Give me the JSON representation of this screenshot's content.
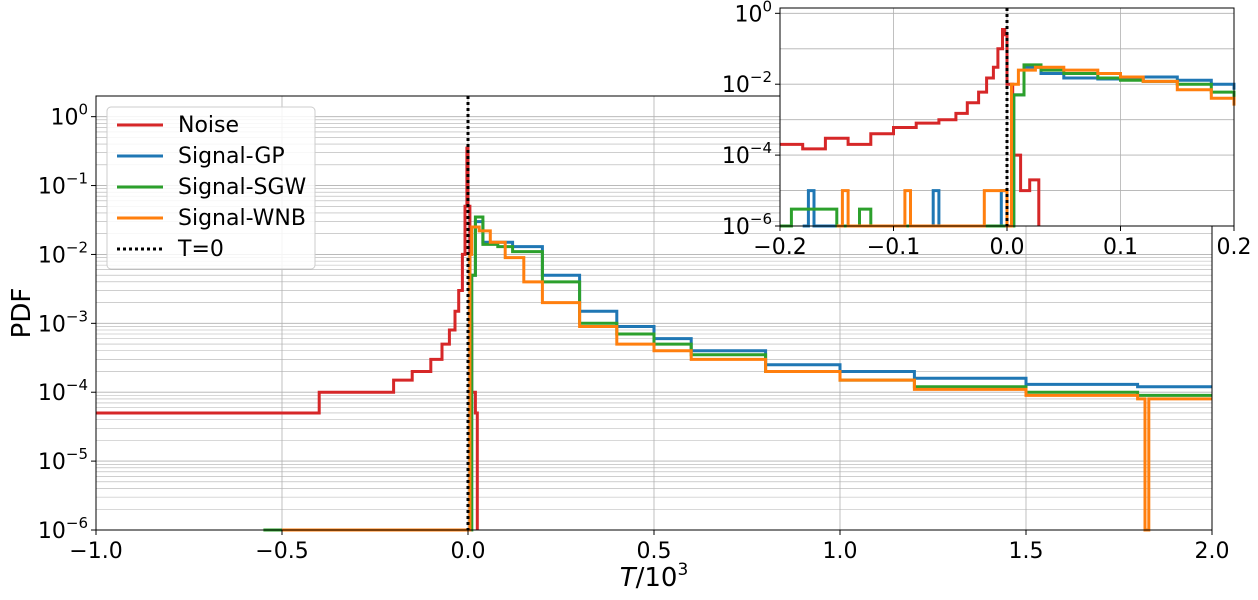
{
  "chart_data": [
    {
      "type": "line",
      "panel": "main",
      "xlabel": "T/10^3",
      "ylabel": "PDF",
      "xlim": [
        -1.0,
        2.0
      ],
      "ylim_log10": [
        -6,
        0.3
      ],
      "log_y": true,
      "grid": true,
      "legend_position": "top-left",
      "x_ticks": [
        {
          "value": -1.0,
          "label": "−1.0"
        },
        {
          "value": -0.5,
          "label": "−0.5"
        },
        {
          "value": 0.0,
          "label": "0.0"
        },
        {
          "value": 0.5,
          "label": "0.5"
        },
        {
          "value": 1.0,
          "label": "1.0"
        },
        {
          "value": 1.5,
          "label": "1.5"
        },
        {
          "value": 2.0,
          "label": "2.0"
        }
      ],
      "y_ticks": [
        {
          "exp": 0,
          "base": "10",
          "sup": "0"
        },
        {
          "exp": -1,
          "base": "10",
          "sup": "−1"
        },
        {
          "exp": -2,
          "base": "10",
          "sup": "−2"
        },
        {
          "exp": -3,
          "base": "10",
          "sup": "−3"
        },
        {
          "exp": -4,
          "base": "10",
          "sup": "−4"
        },
        {
          "exp": -5,
          "base": "10",
          "sup": "−5"
        },
        {
          "exp": -6,
          "base": "10",
          "sup": "−6"
        }
      ],
      "series": [
        {
          "name": "Noise",
          "color": "#d62728",
          "points": [
            [
              -1.0,
              5e-05
            ],
            [
              -0.9,
              5e-05
            ],
            [
              -0.8,
              5e-05
            ],
            [
              -0.7,
              5e-05
            ],
            [
              -0.6,
              5e-05
            ],
            [
              -0.5,
              5e-05
            ],
            [
              -0.4,
              0.0001
            ],
            [
              -0.3,
              0.0001
            ],
            [
              -0.2,
              0.00015
            ],
            [
              -0.15,
              0.0002
            ],
            [
              -0.1,
              0.0003
            ],
            [
              -0.07,
              0.0005
            ],
            [
              -0.05,
              0.0008
            ],
            [
              -0.035,
              0.0015
            ],
            [
              -0.025,
              0.003
            ],
            [
              -0.015,
              0.01
            ],
            [
              -0.008,
              0.05
            ],
            [
              -0.003,
              0.35
            ],
            [
              0.0,
              0.05
            ],
            [
              0.005,
              0.001
            ],
            [
              0.01,
              0.0001
            ],
            [
              0.02,
              5e-05
            ],
            [
              0.025,
              1e-06
            ]
          ]
        },
        {
          "name": "Signal-GP",
          "color": "#1f77b4",
          "points": [
            [
              -0.45,
              1e-06
            ],
            [
              0.0,
              1e-06
            ],
            [
              0.01,
              0.005
            ],
            [
              0.02,
              0.03
            ],
            [
              0.04,
              0.015
            ],
            [
              0.08,
              0.015
            ],
            [
              0.12,
              0.013
            ],
            [
              0.2,
              0.005
            ],
            [
              0.3,
              0.0015
            ],
            [
              0.4,
              0.0009
            ],
            [
              0.5,
              0.0006
            ],
            [
              0.6,
              0.0004
            ],
            [
              0.8,
              0.00025
            ],
            [
              1.0,
              0.0002
            ],
            [
              1.2,
              0.00016
            ],
            [
              1.5,
              0.00013
            ],
            [
              1.8,
              0.00012
            ],
            [
              2.0,
              0.00012
            ]
          ]
        },
        {
          "name": "Signal-SGW",
          "color": "#2ca02c",
          "points": [
            [
              -0.55,
              1e-06
            ],
            [
              0.0,
              1e-06
            ],
            [
              0.01,
              0.005
            ],
            [
              0.02,
              0.035
            ],
            [
              0.04,
              0.014
            ],
            [
              0.08,
              0.013
            ],
            [
              0.12,
              0.011
            ],
            [
              0.2,
              0.004
            ],
            [
              0.3,
              0.001
            ],
            [
              0.4,
              0.0007
            ],
            [
              0.5,
              0.0005
            ],
            [
              0.6,
              0.00035
            ],
            [
              0.8,
              0.0002
            ],
            [
              1.0,
              0.00015
            ],
            [
              1.2,
              0.00012
            ],
            [
              1.5,
              0.0001
            ],
            [
              1.8,
              9e-05
            ],
            [
              2.0,
              9e-05
            ]
          ]
        },
        {
          "name": "Signal-WNB",
          "color": "#ff7f0e",
          "points": [
            [
              -0.5,
              1e-06
            ],
            [
              0.0,
              1e-06
            ],
            [
              0.005,
              0.01
            ],
            [
              0.01,
              0.025
            ],
            [
              0.03,
              0.022
            ],
            [
              0.06,
              0.015
            ],
            [
              0.1,
              0.009
            ],
            [
              0.15,
              0.004
            ],
            [
              0.2,
              0.002
            ],
            [
              0.3,
              0.0009
            ],
            [
              0.4,
              0.0005
            ],
            [
              0.5,
              0.0004
            ],
            [
              0.6,
              0.0003
            ],
            [
              0.8,
              0.0002
            ],
            [
              1.0,
              0.00015
            ],
            [
              1.2,
              0.00011
            ],
            [
              1.5,
              9e-05
            ],
            [
              1.8,
              8e-05
            ],
            [
              1.82,
              1e-06
            ],
            [
              1.83,
              8e-05
            ],
            [
              2.0,
              8e-05
            ]
          ]
        }
      ],
      "reference_line": {
        "name": "T=0",
        "x": 0.0,
        "color": "#000000",
        "style": "dotted"
      }
    },
    {
      "type": "line",
      "panel": "inset",
      "xlim": [
        -0.2,
        0.2
      ],
      "ylim_log10": [
        -6,
        0.15
      ],
      "log_y": true,
      "grid": true,
      "x_ticks": [
        {
          "value": -0.2,
          "label": "−0.2"
        },
        {
          "value": -0.1,
          "label": "−0.1"
        },
        {
          "value": 0.0,
          "label": "0.0"
        },
        {
          "value": 0.1,
          "label": "0.1"
        },
        {
          "value": 0.2,
          "label": "0.2"
        }
      ],
      "y_ticks": [
        {
          "exp": 0,
          "base": "10",
          "sup": "0"
        },
        {
          "exp": -2,
          "base": "10",
          "sup": "−2"
        },
        {
          "exp": -4,
          "base": "10",
          "sup": "−4"
        },
        {
          "exp": -6,
          "base": "10",
          "sup": "−6"
        }
      ],
      "series": [
        {
          "name": "Noise",
          "color": "#d62728",
          "points": [
            [
              -0.2,
              0.0002
            ],
            [
              -0.18,
              0.00015
            ],
            [
              -0.16,
              0.0003
            ],
            [
              -0.14,
              0.0002
            ],
            [
              -0.12,
              0.0004
            ],
            [
              -0.1,
              0.0006
            ],
            [
              -0.08,
              0.0008
            ],
            [
              -0.06,
              0.001
            ],
            [
              -0.045,
              0.0015
            ],
            [
              -0.035,
              0.003
            ],
            [
              -0.025,
              0.006
            ],
            [
              -0.018,
              0.015
            ],
            [
              -0.012,
              0.03
            ],
            [
              -0.008,
              0.1
            ],
            [
              -0.004,
              0.35
            ],
            [
              -0.002,
              0.25
            ],
            [
              0.0,
              0.01
            ],
            [
              0.005,
              0.0001
            ],
            [
              0.012,
              1e-05
            ],
            [
              0.02,
              2e-05
            ],
            [
              0.028,
              1e-06
            ]
          ]
        },
        {
          "name": "Signal-GP",
          "color": "#1f77b4",
          "points": [
            [
              -0.18,
              1e-06
            ],
            [
              -0.175,
              1e-05
            ],
            [
              -0.17,
              1e-06
            ],
            [
              -0.065,
              1e-05
            ],
            [
              -0.06,
              1e-06
            ],
            [
              -0.005,
              1e-05
            ],
            [
              0.0,
              1e-06
            ],
            [
              0.006,
              0.005
            ],
            [
              0.015,
              0.03
            ],
            [
              0.03,
              0.02
            ],
            [
              0.05,
              0.015
            ],
            [
              0.08,
              0.014
            ],
            [
              0.1,
              0.015
            ],
            [
              0.12,
              0.016
            ],
            [
              0.15,
              0.013
            ],
            [
              0.18,
              0.01
            ],
            [
              0.2,
              0.007
            ]
          ]
        },
        {
          "name": "Signal-SGW",
          "color": "#2ca02c",
          "points": [
            [
              -0.2,
              1e-06
            ],
            [
              -0.19,
              3e-06
            ],
            [
              -0.15,
              1e-06
            ],
            [
              -0.13,
              3e-06
            ],
            [
              -0.12,
              1e-06
            ],
            [
              0.0,
              1e-06
            ],
            [
              0.006,
              0.005
            ],
            [
              0.015,
              0.035
            ],
            [
              0.03,
              0.025
            ],
            [
              0.05,
              0.02
            ],
            [
              0.08,
              0.015
            ],
            [
              0.1,
              0.013
            ],
            [
              0.12,
              0.012
            ],
            [
              0.15,
              0.01
            ],
            [
              0.18,
              0.006
            ],
            [
              0.2,
              0.004
            ]
          ]
        },
        {
          "name": "Signal-WNB",
          "color": "#ff7f0e",
          "points": [
            [
              -0.15,
              1e-06
            ],
            [
              -0.145,
              1e-05
            ],
            [
              -0.14,
              1e-06
            ],
            [
              -0.09,
              1e-05
            ],
            [
              -0.085,
              1e-06
            ],
            [
              -0.02,
              1e-05
            ],
            [
              0.0,
              1e-06
            ],
            [
              0.004,
              0.01
            ],
            [
              0.01,
              0.025
            ],
            [
              0.025,
              0.03
            ],
            [
              0.05,
              0.025
            ],
            [
              0.08,
              0.02
            ],
            [
              0.1,
              0.016
            ],
            [
              0.12,
              0.012
            ],
            [
              0.15,
              0.007
            ],
            [
              0.18,
              0.004
            ],
            [
              0.2,
              0.0025
            ]
          ]
        }
      ],
      "reference_line": {
        "name": "T=0",
        "x": 0.0,
        "color": "#000000",
        "style": "dotted"
      }
    }
  ]
}
